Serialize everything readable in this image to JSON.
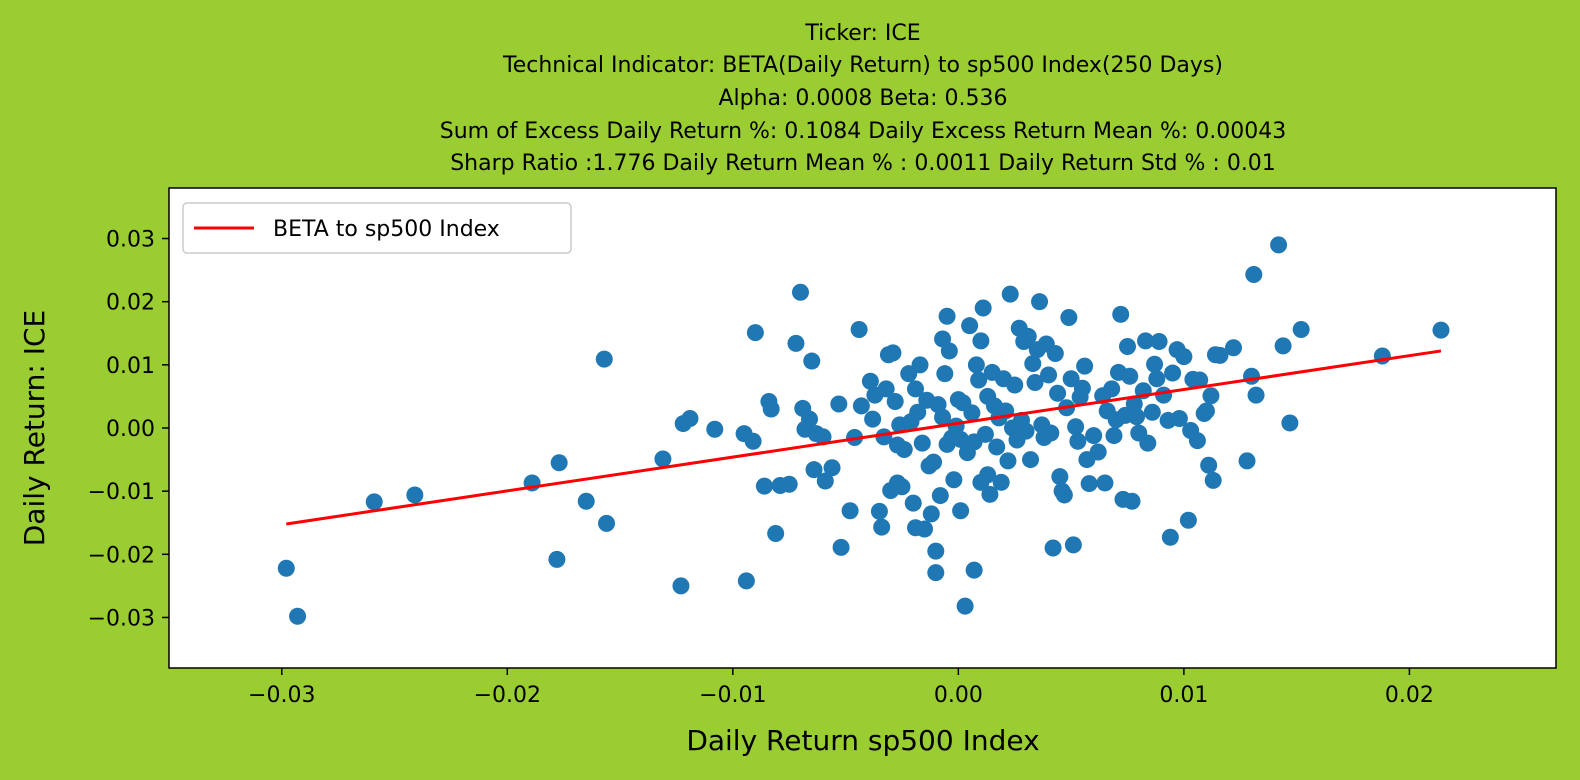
{
  "chart_data": {
    "type": "scatter",
    "title_lines": [
      "Ticker: ICE",
      "Technical Indicator: BETA(Daily Return) to sp500 Index(250 Days)",
      "Alpha: 0.0008   Beta: 0.536",
      "Sum of Excess Daily Return %: 0.1084   Daily Excess Return Mean %: 0.00043",
      "Sharp Ratio :1.776    Daily Return Mean % : 0.0011    Daily Return Std % : 0.01"
    ],
    "xlabel": "Daily Return sp500 Index",
    "ylabel": "Daily Return: ICE",
    "xlim": [
      -0.035,
      0.0265
    ],
    "ylim": [
      -0.038,
      0.038
    ],
    "xticks": [
      -0.03,
      -0.02,
      -0.01,
      0.0,
      0.01,
      0.02
    ],
    "xtick_labels": [
      "−0.03",
      "−0.02",
      "−0.01",
      "0.00",
      "0.01",
      "0.02"
    ],
    "yticks": [
      -0.03,
      -0.02,
      -0.01,
      0.0,
      0.01,
      0.02,
      0.03
    ],
    "ytick_labels": [
      "−0.03",
      "−0.02",
      "−0.01",
      "0.00",
      "0.01",
      "0.02",
      "0.03"
    ],
    "grid": false,
    "legend": {
      "position": "top-left",
      "entries": [
        "BETA to sp500 Index"
      ]
    },
    "colors": {
      "background": "#9acd32",
      "points": "#1f77b4",
      "fit_line": "#ff0000",
      "axes_bg": "#ffffff"
    },
    "fit_line": {
      "name": "BETA to sp500 Index",
      "x": [
        -0.0298,
        0.0214
      ],
      "y": [
        -0.0152,
        0.0122
      ]
    },
    "points": [
      [
        -0.0298,
        -0.0222
      ],
      [
        -0.0293,
        -0.0298
      ],
      [
        -0.0259,
        -0.0117
      ],
      [
        -0.0241,
        -0.0106
      ],
      [
        -0.0189,
        -0.0087
      ],
      [
        -0.0177,
        -0.0055
      ],
      [
        -0.0178,
        -0.0208
      ],
      [
        -0.0165,
        -0.0116
      ],
      [
        -0.0157,
        0.0109
      ],
      [
        -0.0156,
        -0.0151
      ],
      [
        -0.0131,
        -0.0049
      ],
      [
        -0.0122,
        0.0007
      ],
      [
        -0.0119,
        0.0015
      ],
      [
        -0.0123,
        -0.025
      ],
      [
        -0.0108,
        -0.0002
      ],
      [
        -0.0094,
        -0.0242
      ],
      [
        -0.0095,
        -0.0009
      ],
      [
        -0.0091,
        -0.0021
      ],
      [
        -0.009,
        0.0151
      ],
      [
        -0.0086,
        -0.0092
      ],
      [
        -0.0084,
        0.0042
      ],
      [
        -0.0083,
        0.003
      ],
      [
        -0.0081,
        -0.0167
      ],
      [
        -0.0079,
        -0.0091
      ],
      [
        -0.0075,
        -0.0089
      ],
      [
        -0.0072,
        0.0134
      ],
      [
        -0.007,
        0.0215
      ],
      [
        -0.0069,
        0.0031
      ],
      [
        -0.0068,
        -0.0002
      ],
      [
        -0.0066,
        0.0014
      ],
      [
        -0.0065,
        0.0106
      ],
      [
        -0.0064,
        -0.0066
      ],
      [
        -0.0063,
        -0.0009
      ],
      [
        -0.006,
        -0.0014
      ],
      [
        -0.0059,
        -0.0084
      ],
      [
        -0.0056,
        -0.0063
      ],
      [
        -0.0053,
        0.0038
      ],
      [
        -0.0052,
        -0.0189
      ],
      [
        -0.0048,
        -0.0131
      ],
      [
        -0.0046,
        -0.0015
      ],
      [
        -0.0044,
        0.0156
      ],
      [
        -0.0043,
        0.0035
      ],
      [
        -0.0039,
        0.0074
      ],
      [
        -0.0038,
        0.0014
      ],
      [
        -0.0037,
        0.0052
      ],
      [
        -0.0035,
        -0.0132
      ],
      [
        -0.0034,
        -0.0157
      ],
      [
        -0.0033,
        -0.0014
      ],
      [
        -0.0032,
        0.0062
      ],
      [
        -0.0031,
        0.0116
      ],
      [
        -0.003,
        -0.0099
      ],
      [
        -0.0029,
        0.0119
      ],
      [
        -0.0028,
        0.0042
      ],
      [
        -0.0027,
        -0.0087
      ],
      [
        -0.0027,
        -0.0027
      ],
      [
        -0.0026,
        0.0005
      ],
      [
        -0.0025,
        -0.0093
      ],
      [
        -0.0024,
        -0.0034
      ],
      [
        -0.0022,
        0.0086
      ],
      [
        -0.0021,
        0.001
      ],
      [
        -0.002,
        -0.0119
      ],
      [
        -0.0019,
        0.0062
      ],
      [
        -0.0019,
        -0.0158
      ],
      [
        -0.0018,
        0.0025
      ],
      [
        -0.0017,
        0.01
      ],
      [
        -0.0016,
        -0.0024
      ],
      [
        -0.0015,
        -0.016
      ],
      [
        -0.0014,
        0.0044
      ],
      [
        -0.0013,
        -0.006
      ],
      [
        -0.0012,
        -0.0136
      ],
      [
        -0.0011,
        -0.0054
      ],
      [
        -0.001,
        -0.0229
      ],
      [
        -0.001,
        -0.0195
      ],
      [
        -0.0009,
        0.0037
      ],
      [
        -0.0008,
        -0.0107
      ],
      [
        -0.0007,
        0.0017
      ],
      [
        -0.0007,
        0.0141
      ],
      [
        -0.0006,
        0.0086
      ],
      [
        -0.0005,
        -0.0026
      ],
      [
        -0.0005,
        0.0177
      ],
      [
        -0.0004,
        0.0122
      ],
      [
        -0.0003,
        -0.0016
      ],
      [
        -0.0002,
        -0.0082
      ],
      [
        -0.0001,
        0.0003
      ],
      [
        0.0,
        0.0045
      ],
      [
        0.0001,
        -0.0131
      ],
      [
        0.0001,
        -0.0018
      ],
      [
        0.0002,
        0.004
      ],
      [
        0.0003,
        -0.0282
      ],
      [
        0.0004,
        -0.0039
      ],
      [
        0.0005,
        0.0162
      ],
      [
        0.0006,
        0.0024
      ],
      [
        0.0007,
        -0.0225
      ],
      [
        0.0007,
        -0.0022
      ],
      [
        0.0008,
        0.01
      ],
      [
        0.0009,
        0.0076
      ],
      [
        0.001,
        0.0138
      ],
      [
        0.001,
        -0.0086
      ],
      [
        0.0011,
        0.019
      ],
      [
        0.0012,
        -0.001
      ],
      [
        0.0013,
        0.005
      ],
      [
        0.0013,
        -0.0074
      ],
      [
        0.0014,
        -0.0105
      ],
      [
        0.0015,
        0.0088
      ],
      [
        0.0016,
        0.0035
      ],
      [
        0.0017,
        -0.003
      ],
      [
        0.0018,
        0.0016
      ],
      [
        0.0019,
        -0.0086
      ],
      [
        0.002,
        0.0078
      ],
      [
        0.0021,
        0.0027
      ],
      [
        0.0022,
        -0.0052
      ],
      [
        0.0023,
        0.0212
      ],
      [
        0.0024,
        0.0
      ],
      [
        0.0025,
        0.0068
      ],
      [
        0.0026,
        -0.0019
      ],
      [
        0.0027,
        0.0158
      ],
      [
        0.0028,
        0.0012
      ],
      [
        0.0029,
        0.0137
      ],
      [
        0.003,
        -0.0005
      ],
      [
        0.0031,
        0.0145
      ],
      [
        0.0032,
        -0.005
      ],
      [
        0.0033,
        0.0102
      ],
      [
        0.0034,
        0.0072
      ],
      [
        0.0035,
        0.0124
      ],
      [
        0.0036,
        0.02
      ],
      [
        0.0037,
        0.0005
      ],
      [
        0.0038,
        -0.0015
      ],
      [
        0.0039,
        0.0133
      ],
      [
        0.004,
        0.0084
      ],
      [
        0.0041,
        -0.0008
      ],
      [
        0.0042,
        -0.019
      ],
      [
        0.0043,
        0.0118
      ],
      [
        0.0044,
        0.0055
      ],
      [
        0.0045,
        -0.0077
      ],
      [
        0.0046,
        -0.01
      ],
      [
        0.0047,
        -0.0106
      ],
      [
        0.0048,
        0.0032
      ],
      [
        0.0049,
        0.0175
      ],
      [
        0.005,
        0.0078
      ],
      [
        0.0051,
        -0.0185
      ],
      [
        0.0052,
        0.0002
      ],
      [
        0.0053,
        -0.0021
      ],
      [
        0.0054,
        0.0049
      ],
      [
        0.0055,
        0.0063
      ],
      [
        0.0056,
        0.0098
      ],
      [
        0.0057,
        -0.005
      ],
      [
        0.0058,
        -0.0088
      ],
      [
        0.006,
        -0.0012
      ],
      [
        0.0062,
        -0.0038
      ],
      [
        0.0064,
        0.0051
      ],
      [
        0.0065,
        -0.0087
      ],
      [
        0.0066,
        0.0027
      ],
      [
        0.0068,
        0.0062
      ],
      [
        0.0069,
        -0.0012
      ],
      [
        0.007,
        0.0013
      ],
      [
        0.0071,
        0.0088
      ],
      [
        0.0072,
        0.018
      ],
      [
        0.0073,
        -0.0113
      ],
      [
        0.0074,
        0.002
      ],
      [
        0.0075,
        0.0129
      ],
      [
        0.0076,
        0.0082
      ],
      [
        0.0077,
        -0.0116
      ],
      [
        0.0078,
        0.0038
      ],
      [
        0.0079,
        0.0018
      ],
      [
        0.008,
        -0.0008
      ],
      [
        0.0082,
        0.0059
      ],
      [
        0.0083,
        0.0138
      ],
      [
        0.0084,
        -0.0024
      ],
      [
        0.0086,
        0.0025
      ],
      [
        0.0087,
        0.0101
      ],
      [
        0.0088,
        0.0078
      ],
      [
        0.0089,
        0.0137
      ],
      [
        0.0091,
        0.0052
      ],
      [
        0.0093,
        0.0012
      ],
      [
        0.0094,
        -0.0173
      ],
      [
        0.0095,
        0.0087
      ],
      [
        0.0097,
        0.0124
      ],
      [
        0.0098,
        0.0015
      ],
      [
        0.01,
        0.0113
      ],
      [
        0.0102,
        -0.0146
      ],
      [
        0.0103,
        -0.0004
      ],
      [
        0.0104,
        0.0077
      ],
      [
        0.0106,
        -0.002
      ],
      [
        0.0107,
        0.0076
      ],
      [
        0.0109,
        0.0023
      ],
      [
        0.011,
        0.0027
      ],
      [
        0.0111,
        -0.0059
      ],
      [
        0.0112,
        0.0051
      ],
      [
        0.0113,
        -0.0083
      ],
      [
        0.0114,
        0.0116
      ],
      [
        0.0116,
        0.0115
      ],
      [
        0.0122,
        0.0127
      ],
      [
        0.0128,
        -0.0052
      ],
      [
        0.013,
        0.0082
      ],
      [
        0.0131,
        0.0243
      ],
      [
        0.0132,
        0.0052
      ],
      [
        0.0142,
        0.029
      ],
      [
        0.0144,
        0.013
      ],
      [
        0.0147,
        0.0008
      ],
      [
        0.0152,
        0.0156
      ],
      [
        0.0188,
        0.0114
      ],
      [
        0.0214,
        0.0155
      ]
    ]
  }
}
